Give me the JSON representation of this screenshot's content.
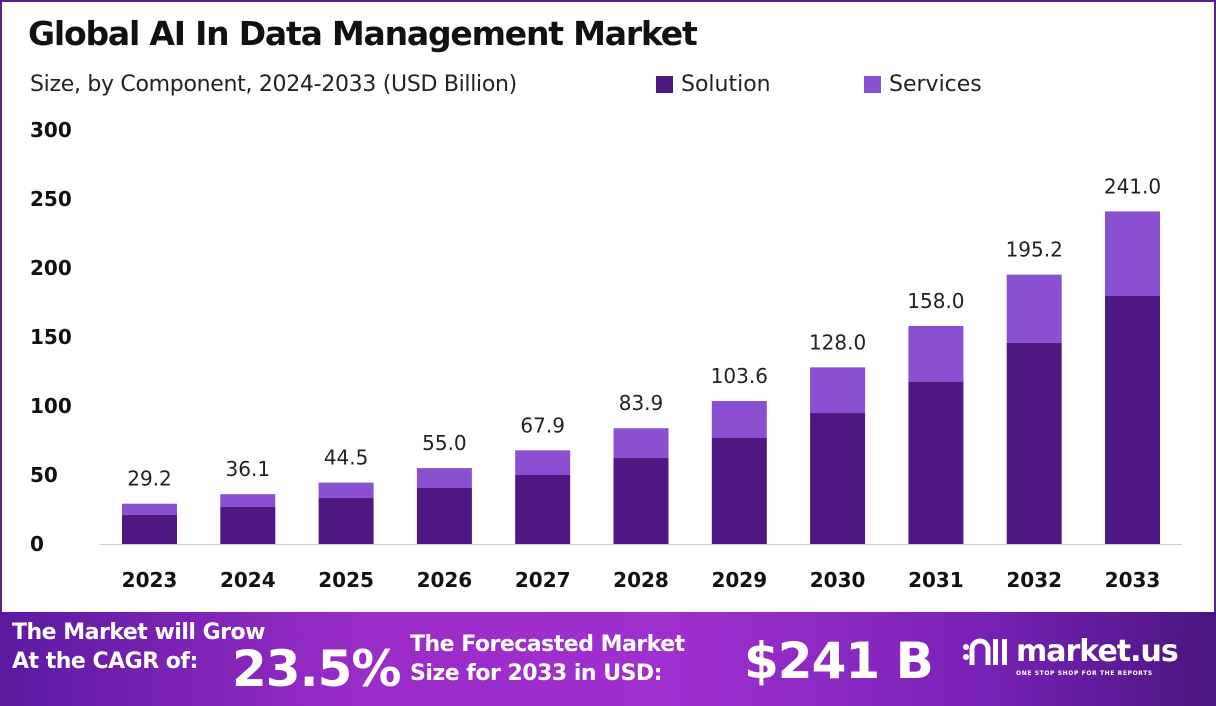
{
  "chart_data": {
    "type": "bar",
    "stacked": true,
    "title": "Global AI In Data Management Market",
    "subtitle": "Size, by Component, 2024-2033 (USD Billion)",
    "categories": [
      "2023",
      "2024",
      "2025",
      "2026",
      "2027",
      "2028",
      "2029",
      "2030",
      "2031",
      "2032",
      "2033"
    ],
    "series": [
      {
        "name": "Solution",
        "color": "#4e1782",
        "values": [
          21.0,
          26.8,
          33.3,
          40.6,
          50.0,
          62.3,
          76.8,
          94.9,
          117.4,
          145.7,
          179.7
        ]
      },
      {
        "name": "Services",
        "color": "#8b4fd1",
        "values": [
          8.2,
          9.3,
          11.2,
          14.4,
          17.9,
          21.6,
          26.8,
          33.1,
          40.6,
          49.5,
          61.3
        ]
      }
    ],
    "totals": [
      "29.2",
      "36.1",
      "44.5",
      "55.0",
      "67.9",
      "83.9",
      "103.6",
      "128.0",
      "158.0",
      "195.2",
      "241.0"
    ],
    "yticks": [
      "0",
      "50",
      "100",
      "150",
      "200",
      "250",
      "300"
    ],
    "ylim": [
      0,
      300
    ],
    "grid": false,
    "legend": "top"
  },
  "footer": {
    "cagr_line1": "The Market will Grow",
    "cagr_line2": "At the CAGR of:",
    "cagr_value": "23.5%",
    "forecast_line1": "The Forecasted Market",
    "forecast_line2": "Size for 2033 in USD:",
    "forecast_value": "$241 B",
    "logo_name": "market.us",
    "logo_tagline": "ONE STOP SHOP FOR THE REPORTS"
  }
}
